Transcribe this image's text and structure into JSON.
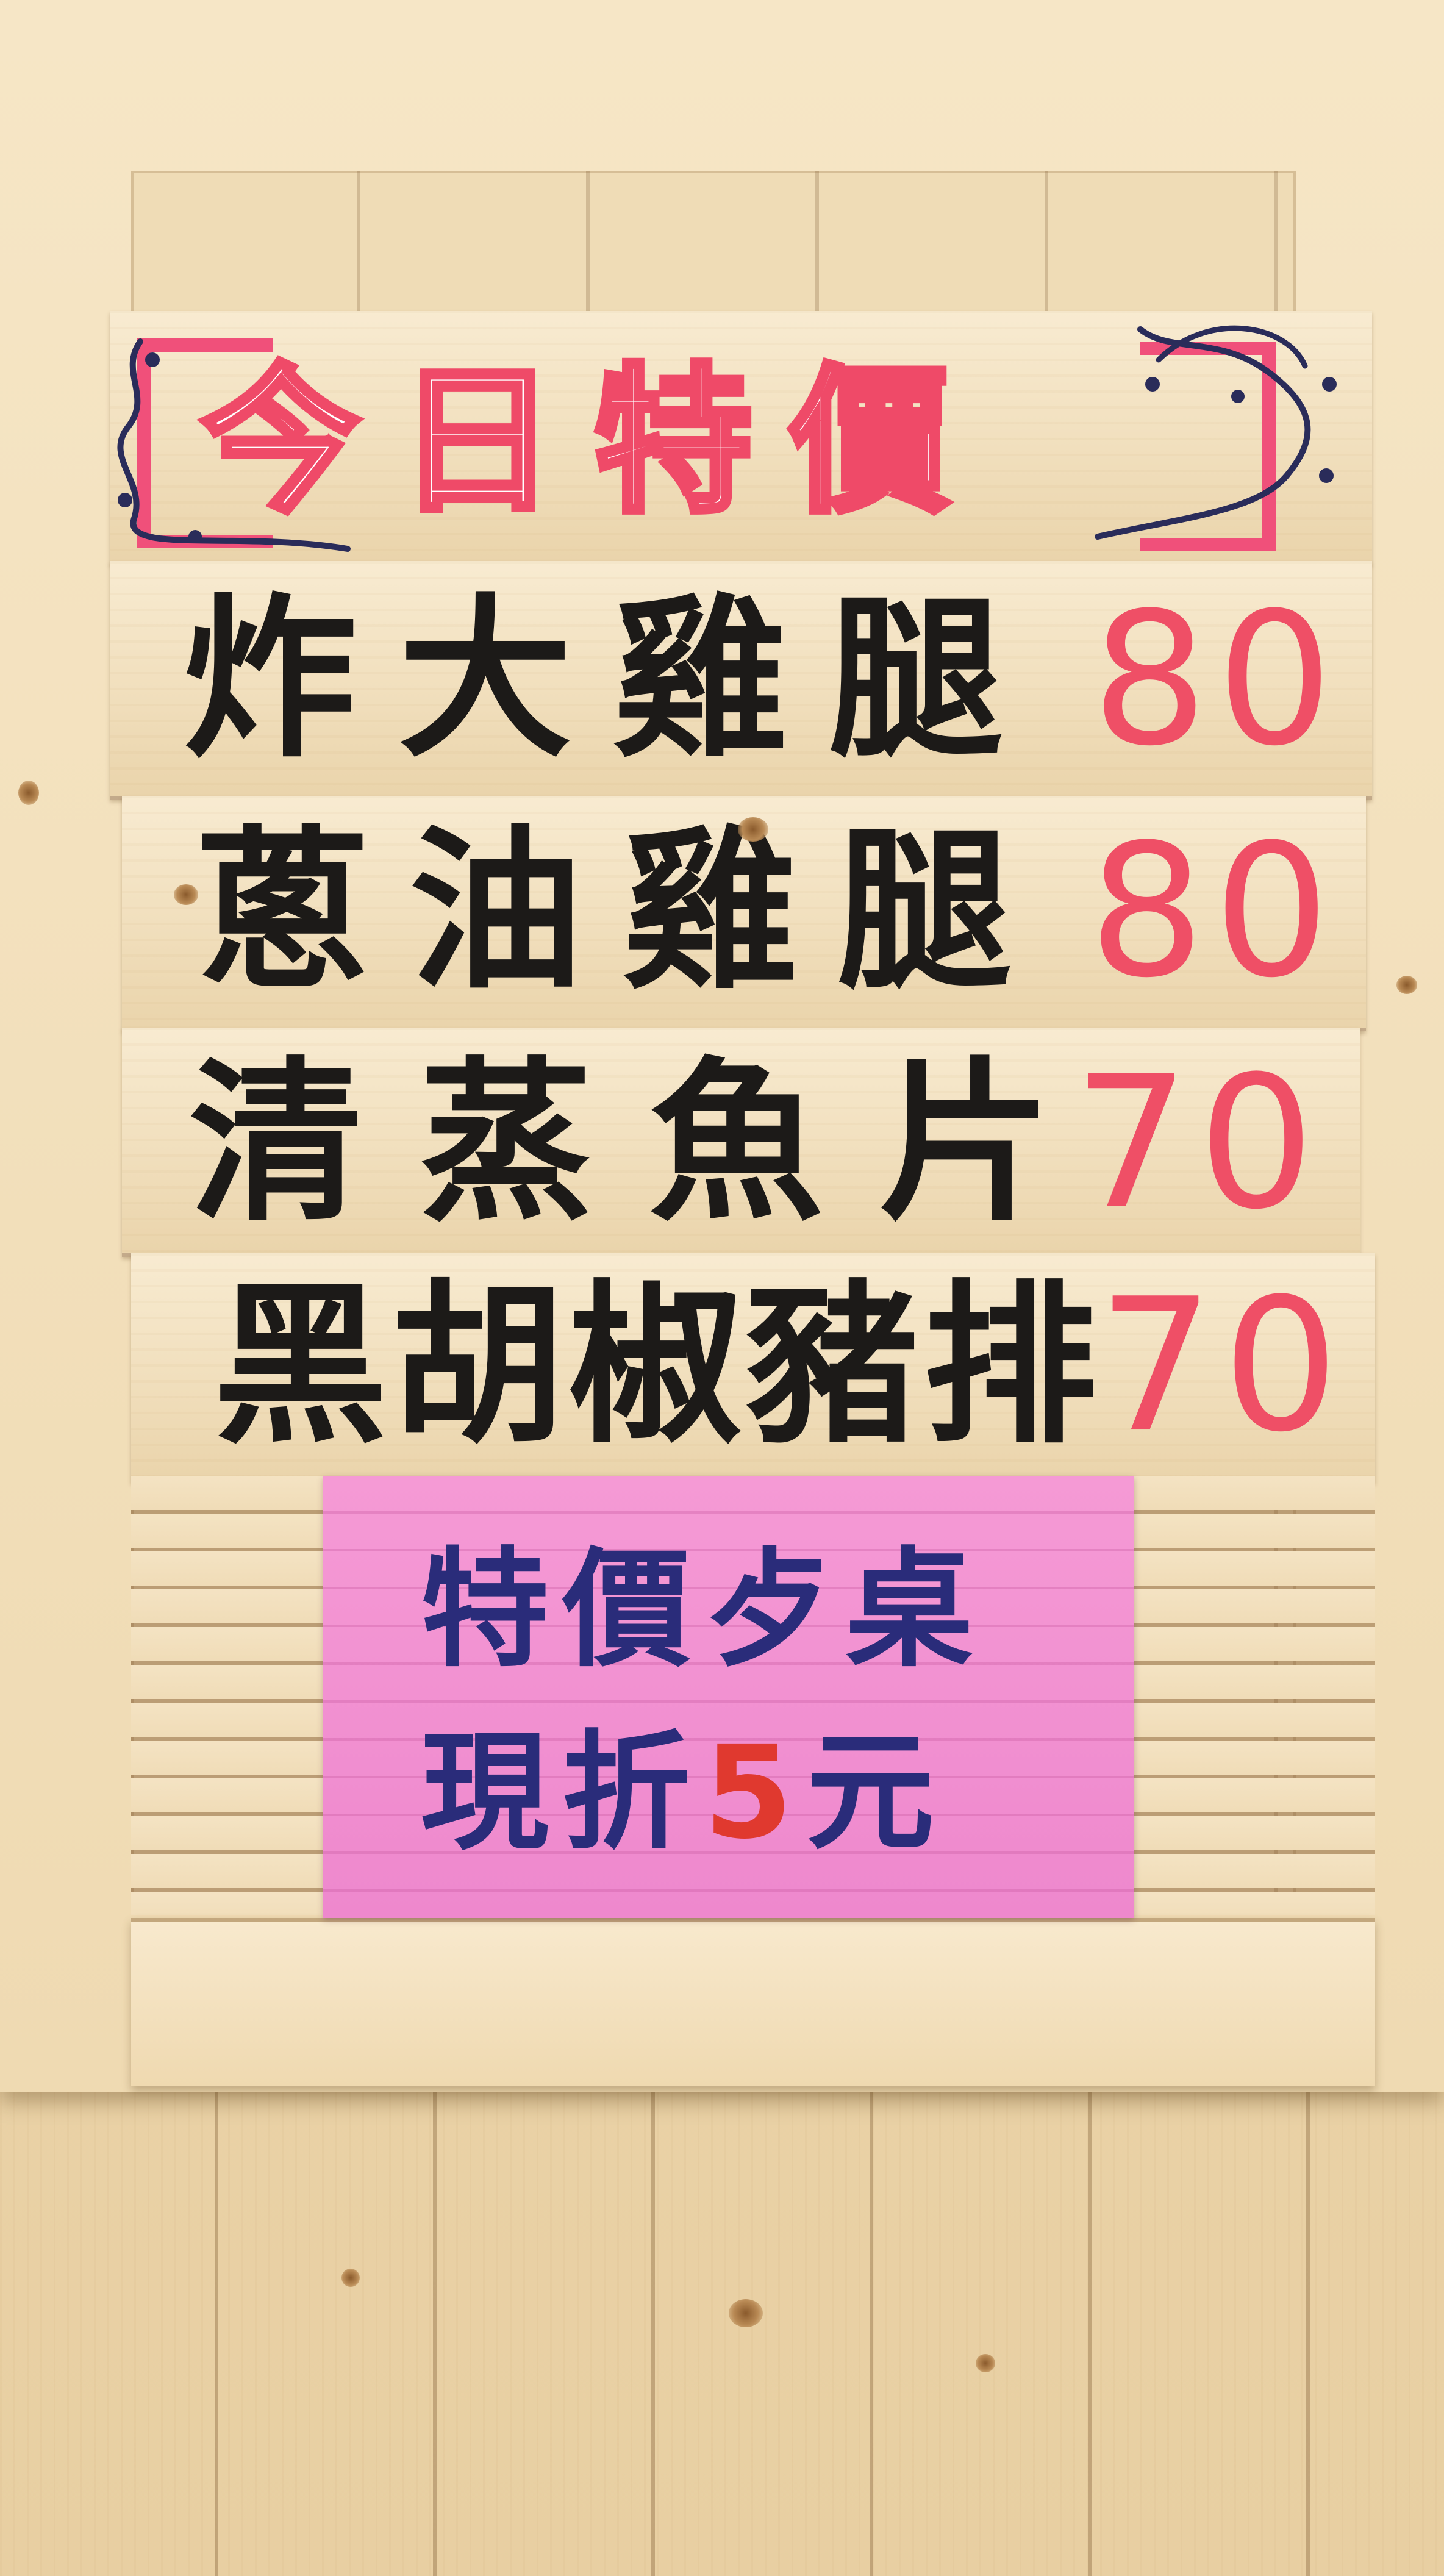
{
  "sign": {
    "title": "今日特價",
    "colors": {
      "title_outline": "#ef4a68",
      "item_text": "#1c1a18",
      "price_text": "#ef4f66",
      "notice_bg": "#f59ad5",
      "notice_text": "#2a2c7a",
      "notice_amount": "#e0392f"
    },
    "items": [
      {
        "name": "炸大雞腿",
        "price": "80"
      },
      {
        "name": "蔥油雞腿",
        "price": "80"
      },
      {
        "name": "清蒸魚片",
        "price": "70"
      },
      {
        "name": "黑胡椒豬排",
        "price": "70"
      }
    ],
    "notice": {
      "line1": "特價歺桌",
      "line2_prefix": "現折",
      "line2_amount": "5",
      "line2_suffix": "元"
    }
  }
}
